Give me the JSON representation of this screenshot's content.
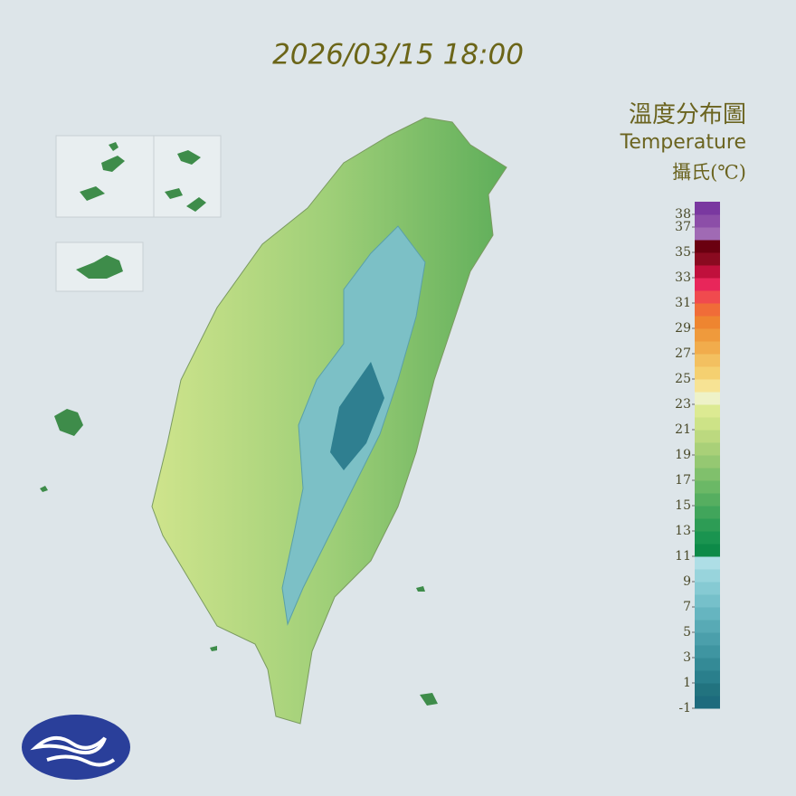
{
  "header": {
    "timestamp": "2026/03/15 18:00"
  },
  "legend": {
    "title": "溫度分布圖",
    "subtitle": "Temperature",
    "unit": "攝氏(℃)",
    "ylim": [
      -1,
      39
    ],
    "ticks": [
      38,
      37,
      35,
      33,
      31,
      29,
      27,
      25,
      23,
      21,
      19,
      17,
      15,
      13,
      11,
      9,
      7,
      5,
      3,
      1,
      -1
    ],
    "colors": [
      "#1d6b7d",
      "#22737f",
      "#2a7f8c",
      "#348a96",
      "#3f95a1",
      "#4b9fab",
      "#58aab5",
      "#66b5c0",
      "#76c0ca",
      "#86cad3",
      "#98d4dc",
      "#aedee6",
      "#0d8a48",
      "#1a9450",
      "#2d9c55",
      "#41a55b",
      "#56ae60",
      "#6bb866",
      "#80c06c",
      "#95c872",
      "#a9d078",
      "#bcd97f",
      "#cde387",
      "#dcea92",
      "#eef2c8",
      "#f7e394",
      "#f5d070",
      "#f3c060",
      "#f1ac4c",
      "#ef9a3c",
      "#ee8530",
      "#f06c38",
      "#f04a4e",
      "#e8265a",
      "#c0103c",
      "#8a0a20",
      "#6a0010",
      "#a06ab4",
      "#8c4ea8",
      "#7a38a0"
    ]
  }
}
